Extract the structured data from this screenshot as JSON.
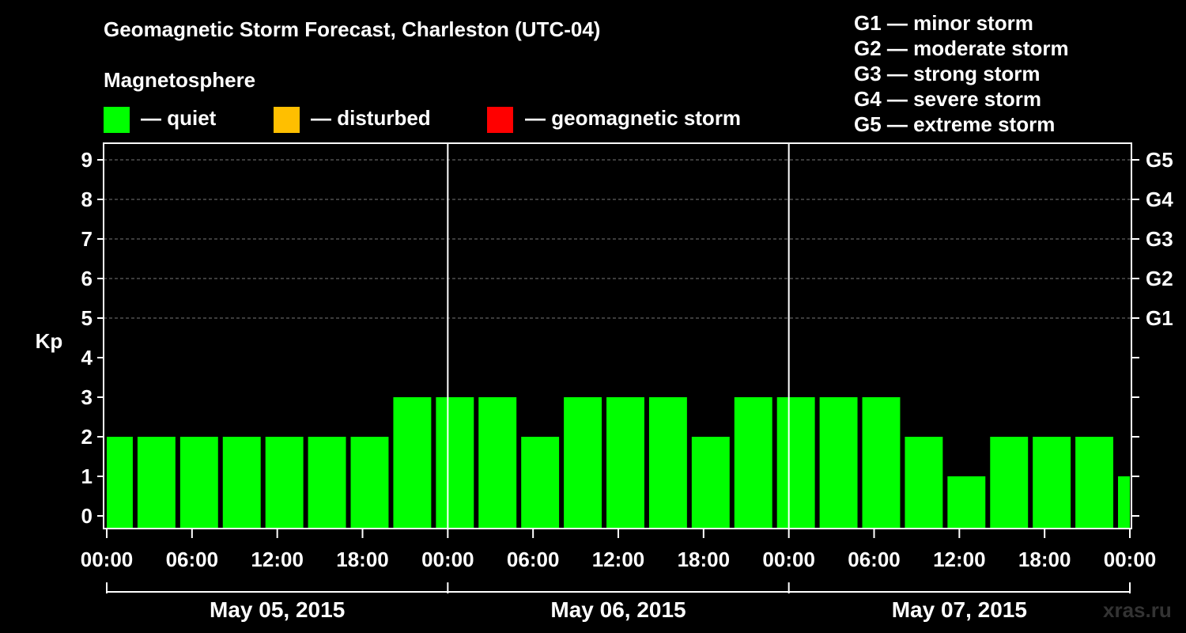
{
  "header": {
    "title": "Geomagnetic Storm Forecast, Charleston (UTC-04)",
    "section_label": "Magnetosphere",
    "legend": [
      {
        "label": "— quiet",
        "color": "#00ff00"
      },
      {
        "label": "— disturbed",
        "color": "#ffbf00"
      },
      {
        "label": "— geomagnetic storm",
        "color": "#ff0000"
      }
    ],
    "storm_scale": [
      "G1 — minor storm",
      "G2 — moderate storm",
      "G3 — strong storm",
      "G4 — severe storm",
      "G5 — extreme storm"
    ]
  },
  "watermark": "xras.ru",
  "chart_data": {
    "type": "bar",
    "ylabel": "Kp",
    "ylim": [
      0,
      9
    ],
    "yticks": [
      "0",
      "1",
      "2",
      "3",
      "4",
      "5",
      "6",
      "7",
      "8",
      "9"
    ],
    "right_axis_labels": [
      {
        "kp": 5,
        "label": "G1"
      },
      {
        "kp": 6,
        "label": "G2"
      },
      {
        "kp": 7,
        "label": "G3"
      },
      {
        "kp": 8,
        "label": "G4"
      },
      {
        "kp": 9,
        "label": "G5"
      }
    ],
    "xticks": [
      "00:00",
      "06:00",
      "12:00",
      "18:00",
      "00:00",
      "06:00",
      "12:00",
      "18:00",
      "00:00",
      "06:00",
      "12:00",
      "18:00",
      "00:00"
    ],
    "xtick_hours": [
      0,
      6,
      12,
      18,
      24,
      30,
      36,
      42,
      48,
      54,
      60,
      66,
      72
    ],
    "x_range_hours": [
      0,
      72
    ],
    "days": [
      "May 05, 2015",
      "May 06, 2015",
      "May 07, 2015"
    ],
    "day_boundaries_hours": [
      24,
      48
    ],
    "bars": [
      {
        "start": 0,
        "end": 2,
        "kp": 2
      },
      {
        "start": 2,
        "end": 5,
        "kp": 2
      },
      {
        "start": 5,
        "end": 8,
        "kp": 2
      },
      {
        "start": 8,
        "end": 11,
        "kp": 2
      },
      {
        "start": 11,
        "end": 14,
        "kp": 2
      },
      {
        "start": 14,
        "end": 17,
        "kp": 2
      },
      {
        "start": 17,
        "end": 20,
        "kp": 2
      },
      {
        "start": 20,
        "end": 23,
        "kp": 3
      },
      {
        "start": 23,
        "end": 26,
        "kp": 3
      },
      {
        "start": 26,
        "end": 29,
        "kp": 3
      },
      {
        "start": 29,
        "end": 32,
        "kp": 2
      },
      {
        "start": 32,
        "end": 35,
        "kp": 3
      },
      {
        "start": 35,
        "end": 38,
        "kp": 3
      },
      {
        "start": 38,
        "end": 41,
        "kp": 3
      },
      {
        "start": 41,
        "end": 44,
        "kp": 2
      },
      {
        "start": 44,
        "end": 47,
        "kp": 3
      },
      {
        "start": 47,
        "end": 50,
        "kp": 3
      },
      {
        "start": 50,
        "end": 53,
        "kp": 3
      },
      {
        "start": 53,
        "end": 56,
        "kp": 3
      },
      {
        "start": 56,
        "end": 59,
        "kp": 2
      },
      {
        "start": 59,
        "end": 62,
        "kp": 1
      },
      {
        "start": 62,
        "end": 65,
        "kp": 2
      },
      {
        "start": 65,
        "end": 68,
        "kp": 2
      },
      {
        "start": 68,
        "end": 71,
        "kp": 2
      },
      {
        "start": 71,
        "end": 72,
        "kp": 1
      }
    ],
    "bar_color": "#00ff00",
    "grid": "dashed horizontal"
  }
}
